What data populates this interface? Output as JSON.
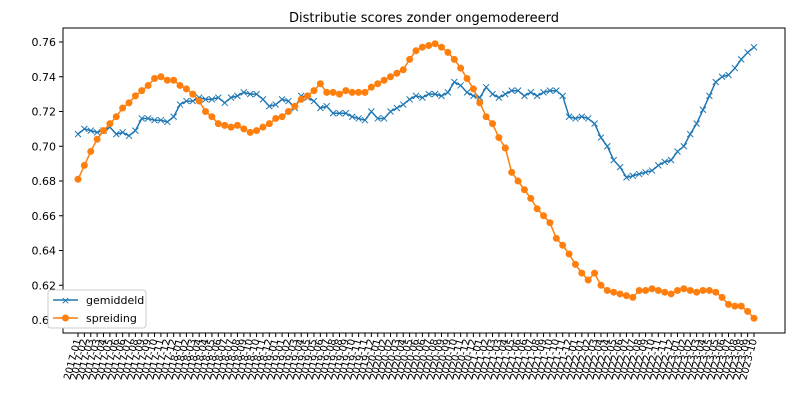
{
  "chart_data": {
    "type": "line",
    "title": "Distributie scores zonder ongemodereerd",
    "xlabel": "",
    "ylabel": "",
    "ylim": [
      0.594,
      0.766
    ],
    "yticks": [
      "0.60",
      "0.62",
      "0.64",
      "0.66",
      "0.68",
      "0.70",
      "0.72",
      "0.74",
      "0.76"
    ],
    "x_first_label": "2017-01",
    "x_last_label": "2023-10",
    "grid": false,
    "legend_position": "lower left",
    "series": [
      {
        "name": "gemiddeld",
        "color": "#1f77b4",
        "marker": "x",
        "values": [
          0.707,
          0.71,
          0.709,
          0.708,
          0.709,
          0.711,
          0.707,
          0.708,
          0.706,
          0.709,
          0.716,
          0.716,
          0.715,
          0.715,
          0.714,
          0.717,
          0.724,
          0.726,
          0.726,
          0.728,
          0.727,
          0.727,
          0.728,
          0.725,
          0.728,
          0.729,
          0.731,
          0.73,
          0.73,
          0.727,
          0.723,
          0.724,
          0.727,
          0.726,
          0.722,
          0.729,
          0.728,
          0.726,
          0.722,
          0.723,
          0.719,
          0.719,
          0.719,
          0.717,
          0.716,
          0.715,
          0.72,
          0.716,
          0.716,
          0.72,
          0.722,
          0.724,
          0.727,
          0.729,
          0.728,
          0.73,
          0.73,
          0.729,
          0.731,
          0.737,
          0.735,
          0.731,
          0.729,
          0.728,
          0.734,
          0.73,
          0.728,
          0.73,
          0.732,
          0.732,
          0.729,
          0.731,
          0.729,
          0.731,
          0.732,
          0.732,
          0.729,
          0.717,
          0.716,
          0.717,
          0.716,
          0.713,
          0.705,
          0.7,
          0.692,
          0.688,
          0.682,
          0.683,
          0.684,
          0.685,
          0.686,
          0.689,
          0.691,
          0.692,
          0.697,
          0.7,
          0.707,
          0.713,
          0.721,
          0.729,
          0.737,
          0.74,
          0.741,
          0.745,
          0.75,
          0.754,
          0.757
        ]
      },
      {
        "name": "spreiding",
        "color": "#ff7f0e",
        "marker": "o",
        "values": [
          0.681,
          0.689,
          0.697,
          0.704,
          0.709,
          0.713,
          0.717,
          0.722,
          0.725,
          0.729,
          0.732,
          0.735,
          0.739,
          0.74,
          0.738,
          0.738,
          0.735,
          0.733,
          0.73,
          0.726,
          0.72,
          0.717,
          0.713,
          0.712,
          0.711,
          0.712,
          0.71,
          0.708,
          0.709,
          0.711,
          0.713,
          0.716,
          0.717,
          0.72,
          0.723,
          0.727,
          0.729,
          0.732,
          0.736,
          0.731,
          0.731,
          0.73,
          0.732,
          0.731,
          0.731,
          0.731,
          0.734,
          0.736,
          0.738,
          0.74,
          0.742,
          0.744,
          0.75,
          0.755,
          0.757,
          0.758,
          0.759,
          0.757,
          0.754,
          0.75,
          0.745,
          0.739,
          0.733,
          0.725,
          0.717,
          0.713,
          0.705,
          0.699,
          0.685,
          0.68,
          0.675,
          0.67,
          0.664,
          0.66,
          0.656,
          0.647,
          0.643,
          0.638,
          0.632,
          0.627,
          0.623,
          0.627,
          0.62,
          0.617,
          0.616,
          0.615,
          0.614,
          0.613,
          0.617,
          0.617,
          0.618,
          0.617,
          0.616,
          0.615,
          0.617,
          0.618,
          0.617,
          0.616,
          0.617,
          0.617,
          0.616,
          0.613,
          0.609,
          0.608,
          0.608,
          0.605,
          0.601
        ]
      }
    ]
  },
  "legend": {
    "items": [
      "gemiddeld",
      "spreiding"
    ]
  }
}
